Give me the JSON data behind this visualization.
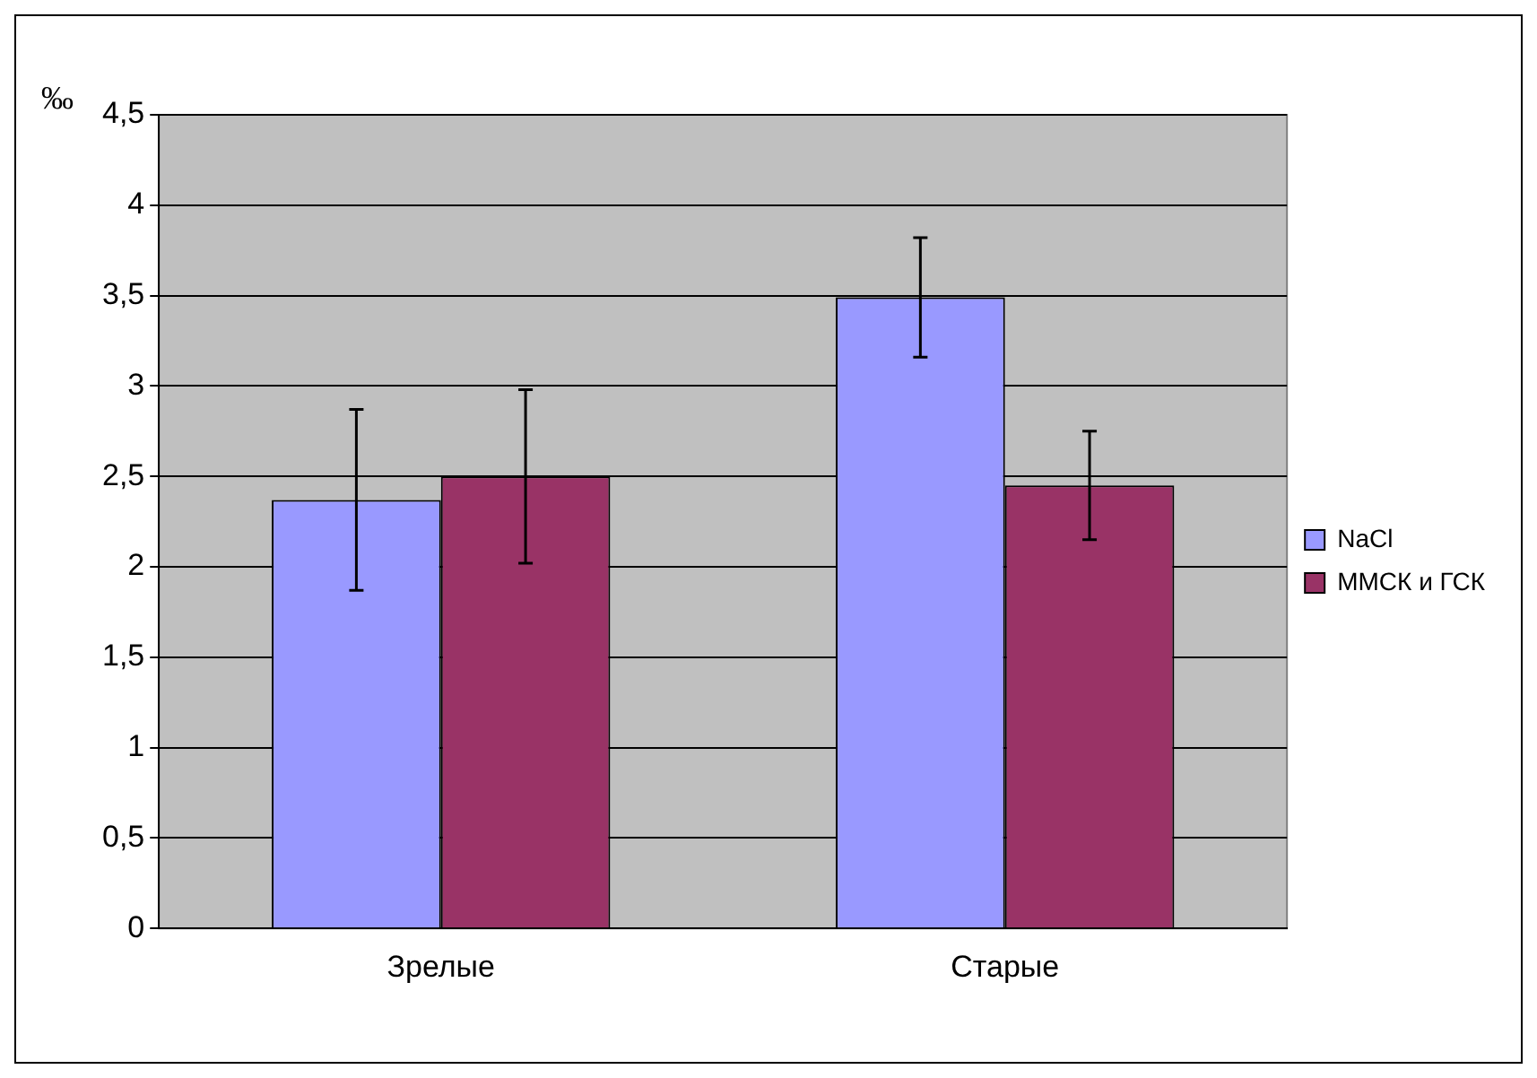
{
  "chart_data": {
    "type": "bar",
    "ylabel": "‰",
    "categories": [
      "Зрелые",
      "Старые"
    ],
    "series": [
      {
        "name": "NaCl",
        "color": "#9999ff",
        "values": [
          2.37,
          3.49
        ],
        "errors": [
          0.5,
          0.33
        ]
      },
      {
        "name": "ММСК и ГСК",
        "color": "#993366",
        "values": [
          2.5,
          2.45
        ],
        "errors": [
          0.48,
          0.3
        ]
      }
    ],
    "ylim": [
      0,
      4.5
    ],
    "yticks": [
      0,
      {
        "value": 0.5,
        "label": "0,5"
      },
      1,
      {
        "value": 1.5,
        "label": "1,5"
      },
      2,
      {
        "value": 2.5,
        "label": "2,5"
      },
      3,
      {
        "value": 3.5,
        "label": "3,5"
      },
      4,
      {
        "value": 4.5,
        "label": "4,5"
      }
    ],
    "grid": "y",
    "legend": "right"
  }
}
